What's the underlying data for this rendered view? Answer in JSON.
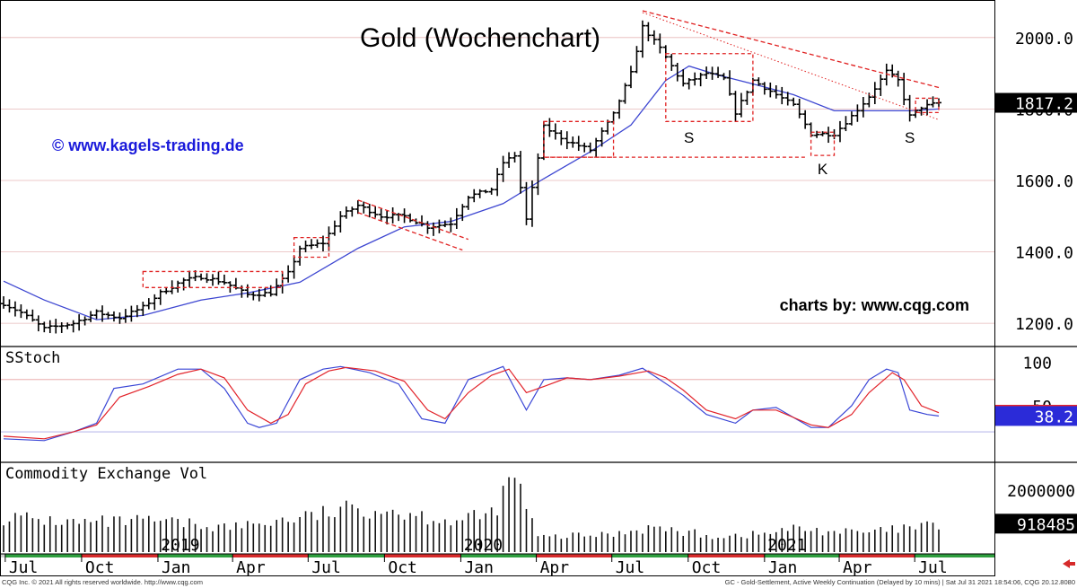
{
  "chart_data": [
    {
      "panel": "price",
      "type": "ohlc-bar",
      "title": "Gold (Wochenchart)",
      "watermark_left": "© www.kagels-trading.de",
      "watermark_right": "charts by: www.cqg.com",
      "ylim": [
        1150,
        2085
      ],
      "yticks": [
        "1200.0",
        "1400.0",
        "1600.0",
        "1800.0",
        "2000.0"
      ],
      "ytick_values": [
        1200,
        1400,
        1600,
        1800,
        2000
      ],
      "last_price": "1817.2",
      "x_start": "2018-06-29",
      "x_end": "2021-07-30",
      "month_labels": [
        {
          "date": "2018-07-01",
          "label": "Jul"
        },
        {
          "date": "2018-10-01",
          "label": "Oct"
        },
        {
          "date": "2019-01-01",
          "label": "Jan"
        },
        {
          "date": "2019-04-01",
          "label": "Apr"
        },
        {
          "date": "2019-07-01",
          "label": "Jul"
        },
        {
          "date": "2019-10-01",
          "label": "Oct"
        },
        {
          "date": "2020-01-01",
          "label": "Jan"
        },
        {
          "date": "2020-04-01",
          "label": "Apr"
        },
        {
          "date": "2020-07-01",
          "label": "Jul"
        },
        {
          "date": "2020-10-01",
          "label": "Oct"
        },
        {
          "date": "2021-01-01",
          "label": "Jan"
        },
        {
          "date": "2021-04-01",
          "label": "Apr"
        },
        {
          "date": "2021-07-01",
          "label": "Jul"
        }
      ],
      "year_labels": [
        {
          "date": "2019-01-01",
          "label": "2019"
        },
        {
          "date": "2020-01-01",
          "label": "2020"
        },
        {
          "date": "2021-01-01",
          "label": "2021"
        }
      ],
      "close_path": [
        [
          "2018-06-29",
          1255
        ],
        [
          "2018-07-20",
          1230
        ],
        [
          "2018-08-17",
          1185
        ],
        [
          "2018-09-21",
          1200
        ],
        [
          "2018-10-19",
          1230
        ],
        [
          "2018-11-16",
          1215
        ],
        [
          "2018-12-14",
          1245
        ],
        [
          "2019-01-04",
          1285
        ],
        [
          "2019-02-01",
          1320
        ],
        [
          "2019-02-22",
          1330
        ],
        [
          "2019-03-22",
          1315
        ],
        [
          "2019-04-19",
          1280
        ],
        [
          "2019-05-17",
          1285
        ],
        [
          "2019-06-07",
          1340
        ],
        [
          "2019-06-21",
          1410
        ],
        [
          "2019-07-19",
          1425
        ],
        [
          "2019-08-09",
          1500
        ],
        [
          "2019-08-30",
          1530
        ],
        [
          "2019-09-27",
          1500
        ],
        [
          "2019-10-25",
          1500
        ],
        [
          "2019-11-22",
          1470
        ],
        [
          "2019-12-20",
          1480
        ],
        [
          "2020-01-10",
          1555
        ],
        [
          "2020-02-07",
          1575
        ],
        [
          "2020-02-21",
          1650
        ],
        [
          "2020-03-06",
          1670
        ],
        [
          "2020-03-20",
          1490
        ],
        [
          "2020-04-10",
          1750
        ],
        [
          "2020-05-08",
          1710
        ],
        [
          "2020-06-05",
          1685
        ],
        [
          "2020-07-03",
          1785
        ],
        [
          "2020-07-24",
          1900
        ],
        [
          "2020-08-07",
          2030
        ],
        [
          "2020-08-28",
          1970
        ],
        [
          "2020-09-25",
          1870
        ],
        [
          "2020-10-23",
          1900
        ],
        [
          "2020-11-13",
          1885
        ],
        [
          "2020-11-27",
          1790
        ],
        [
          "2020-12-18",
          1880
        ],
        [
          "2021-01-08",
          1850
        ],
        [
          "2021-02-05",
          1810
        ],
        [
          "2021-02-26",
          1730
        ],
        [
          "2021-03-26",
          1730
        ],
        [
          "2021-04-16",
          1780
        ],
        [
          "2021-05-07",
          1835
        ],
        [
          "2021-05-28",
          1905
        ],
        [
          "2021-06-11",
          1880
        ],
        [
          "2021-06-25",
          1780
        ],
        [
          "2021-07-09",
          1805
        ],
        [
          "2021-07-30",
          1817
        ]
      ],
      "ma_path": [
        [
          "2018-06-29",
          1318
        ],
        [
          "2018-08-17",
          1265
        ],
        [
          "2018-10-19",
          1210
        ],
        [
          "2018-12-14",
          1222
        ],
        [
          "2019-02-22",
          1265
        ],
        [
          "2019-04-19",
          1285
        ],
        [
          "2019-06-21",
          1315
        ],
        [
          "2019-08-30",
          1410
        ],
        [
          "2019-10-25",
          1470
        ],
        [
          "2019-12-20",
          1485
        ],
        [
          "2020-02-21",
          1535
        ],
        [
          "2020-04-10",
          1605
        ],
        [
          "2020-06-05",
          1680
        ],
        [
          "2020-07-24",
          1755
        ],
        [
          "2020-09-04",
          1880
        ],
        [
          "2020-10-02",
          1920
        ],
        [
          "2020-11-06",
          1895
        ],
        [
          "2020-12-18",
          1870
        ],
        [
          "2021-02-05",
          1840
        ],
        [
          "2021-03-26",
          1795
        ],
        [
          "2021-05-07",
          1795
        ],
        [
          "2021-06-25",
          1795
        ],
        [
          "2021-07-30",
          1800
        ]
      ],
      "annotations": {
        "trendlines": [
          {
            "from": [
              "2020-08-07",
              2075
            ],
            "to": [
              "2021-07-30",
              1860
            ]
          },
          {
            "from": [
              "2019-08-30",
              1545
            ],
            "to": [
              "2020-01-10",
              1435
            ]
          },
          {
            "from": [
              "2019-08-30",
              1510
            ],
            "to": [
              "2020-01-03",
              1405
            ]
          }
        ],
        "dotted_line": {
          "from": [
            "2020-08-07",
            2070
          ],
          "to": [
            "2021-07-30",
            1770
          ]
        },
        "boxes": [
          {
            "from": [
              "2018-12-14",
              1300
            ],
            "to": [
              "2019-05-31",
              1345
            ]
          },
          {
            "from": [
              "2019-06-14",
              1385
            ],
            "to": [
              "2019-07-26",
              1440
            ]
          },
          {
            "from": [
              "2020-04-10",
              1665
            ],
            "to": [
              "2020-07-03",
              1765
            ]
          },
          {
            "from": [
              "2020-04-10",
              1665
            ],
            "to": [
              "2021-02-19",
              1665
            ]
          },
          {
            "from": [
              "2020-09-04",
              1765
            ],
            "to": [
              "2020-12-18",
              1955
            ]
          },
          {
            "from": [
              "2021-02-26",
              1670
            ],
            "to": [
              "2021-03-26",
              1735
            ]
          },
          {
            "from": [
              "2021-07-02",
              1790
            ],
            "to": [
              "2021-07-30",
              1830
            ]
          }
        ],
        "labels": [
          {
            "text": "S",
            "at": [
              "2020-10-02",
              1705
            ]
          },
          {
            "text": "K",
            "at": [
              "2021-03-12",
              1617
            ]
          },
          {
            "text": "S",
            "at": [
              "2021-06-25",
              1705
            ]
          }
        ]
      }
    },
    {
      "panel": "oscillator",
      "type": "line",
      "label": "SStoch",
      "ylim": [
        -15,
        118
      ],
      "yticks": [
        "100",
        "50"
      ],
      "ytick_values": [
        100,
        50
      ],
      "guide_values": [
        80,
        20
      ],
      "last_value": "38.2",
      "series": [
        {
          "color": "#3a46d6",
          "values": [
            [
              "2018-06-29",
              12
            ],
            [
              "2018-08-17",
              10
            ],
            [
              "2018-09-21",
              20
            ],
            [
              "2018-10-19",
              30
            ],
            [
              "2018-11-09",
              70
            ],
            [
              "2018-12-14",
              75
            ],
            [
              "2019-01-25",
              92
            ],
            [
              "2019-02-22",
              92
            ],
            [
              "2019-03-22",
              70
            ],
            [
              "2019-04-19",
              30
            ],
            [
              "2019-05-03",
              25
            ],
            [
              "2019-05-24",
              30
            ],
            [
              "2019-06-21",
              80
            ],
            [
              "2019-07-19",
              92
            ],
            [
              "2019-08-09",
              95
            ],
            [
              "2019-09-13",
              88
            ],
            [
              "2019-10-18",
              75
            ],
            [
              "2019-11-15",
              35
            ],
            [
              "2019-12-13",
              30
            ],
            [
              "2020-01-10",
              80
            ],
            [
              "2020-02-07",
              90
            ],
            [
              "2020-02-21",
              95
            ],
            [
              "2020-03-06",
              70
            ],
            [
              "2020-03-20",
              45
            ],
            [
              "2020-04-10",
              80
            ],
            [
              "2020-05-08",
              82
            ],
            [
              "2020-06-05",
              80
            ],
            [
              "2020-07-10",
              85
            ],
            [
              "2020-08-07",
              93
            ],
            [
              "2020-08-28",
              80
            ],
            [
              "2020-09-25",
              62
            ],
            [
              "2020-10-23",
              40
            ],
            [
              "2020-11-27",
              30
            ],
            [
              "2020-12-18",
              45
            ],
            [
              "2021-01-15",
              48
            ],
            [
              "2021-02-26",
              25
            ],
            [
              "2021-03-19",
              25
            ],
            [
              "2021-04-16",
              50
            ],
            [
              "2021-05-07",
              80
            ],
            [
              "2021-05-28",
              92
            ],
            [
              "2021-06-11",
              88
            ],
            [
              "2021-06-25",
              45
            ],
            [
              "2021-07-16",
              40
            ],
            [
              "2021-07-30",
              38.2
            ]
          ]
        },
        {
          "color": "#e2232a",
          "values": [
            [
              "2018-06-29",
              15
            ],
            [
              "2018-08-17",
              12
            ],
            [
              "2018-09-21",
              20
            ],
            [
              "2018-10-19",
              28
            ],
            [
              "2018-11-16",
              60
            ],
            [
              "2018-12-21",
              72
            ],
            [
              "2019-01-25",
              86
            ],
            [
              "2019-02-22",
              92
            ],
            [
              "2019-03-22",
              82
            ],
            [
              "2019-04-19",
              45
            ],
            [
              "2019-05-17",
              30
            ],
            [
              "2019-06-07",
              40
            ],
            [
              "2019-06-28",
              75
            ],
            [
              "2019-07-26",
              90
            ],
            [
              "2019-08-16",
              94
            ],
            [
              "2019-09-20",
              90
            ],
            [
              "2019-10-25",
              78
            ],
            [
              "2019-11-22",
              45
            ],
            [
              "2019-12-13",
              35
            ],
            [
              "2020-01-10",
              65
            ],
            [
              "2020-02-07",
              85
            ],
            [
              "2020-02-28",
              92
            ],
            [
              "2020-03-20",
              65
            ],
            [
              "2020-04-10",
              72
            ],
            [
              "2020-05-08",
              82
            ],
            [
              "2020-06-05",
              80
            ],
            [
              "2020-07-10",
              84
            ],
            [
              "2020-08-14",
              90
            ],
            [
              "2020-09-04",
              82
            ],
            [
              "2020-09-25",
              68
            ],
            [
              "2020-10-23",
              45
            ],
            [
              "2020-11-27",
              35
            ],
            [
              "2020-12-18",
              45
            ],
            [
              "2021-01-15",
              45
            ],
            [
              "2021-02-26",
              28
            ],
            [
              "2021-03-19",
              25
            ],
            [
              "2021-04-16",
              40
            ],
            [
              "2021-05-07",
              65
            ],
            [
              "2021-06-04",
              88
            ],
            [
              "2021-06-18",
              80
            ],
            [
              "2021-07-09",
              50
            ],
            [
              "2021-07-30",
              42
            ]
          ]
        }
      ]
    },
    {
      "panel": "volume",
      "type": "bar",
      "label": "Commodity Exchange Vol",
      "ylim": [
        0,
        2900000
      ],
      "yticks": [
        "2000000"
      ],
      "ytick_values": [
        2000000
      ],
      "last_value": "918485",
      "series": [
        {
          "color": "#111111",
          "values": [
            [
              "2018-06-29",
              1200000
            ],
            [
              "2018-09-28",
              1000000
            ],
            [
              "2018-12-28",
              1050000
            ],
            [
              "2019-03-29",
              850000
            ],
            [
              "2019-06-28",
              1200000
            ],
            [
              "2019-08-30",
              1500000
            ],
            [
              "2019-09-27",
              1500000
            ],
            [
              "2019-12-27",
              1050000
            ],
            [
              "2020-02-07",
              1300000
            ],
            [
              "2020-03-06",
              2600000
            ],
            [
              "2020-04-03",
              500000
            ],
            [
              "2020-06-26",
              600000
            ],
            [
              "2020-08-14",
              850000
            ],
            [
              "2020-10-30",
              550000
            ],
            [
              "2020-12-25",
              600000
            ],
            [
              "2021-02-05",
              800000
            ],
            [
              "2021-04-30",
              650000
            ],
            [
              "2021-07-30",
              918485
            ]
          ]
        }
      ]
    }
  ],
  "footer": {
    "left": "CQG Inc. © 2021 All rights reserved worldwide. http://www.cqg.com",
    "right": "GC - Gold-Settlement, Active Weekly Continuation (Delayed by 10 mins) | Sat Jul 31 2021 18:54:06, CQG 20.12.8080"
  }
}
